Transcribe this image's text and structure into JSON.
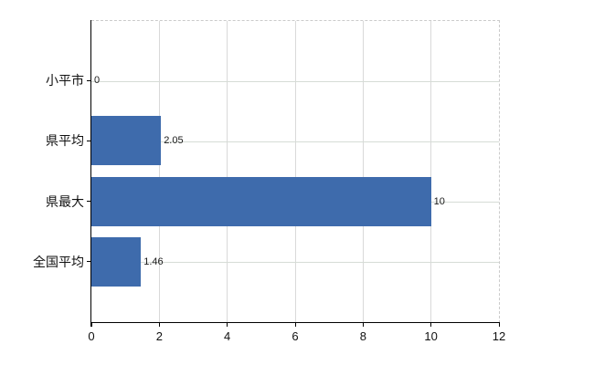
{
  "chart_data": {
    "type": "bar",
    "orientation": "horizontal",
    "title": "",
    "xlabel": "",
    "ylabel": "",
    "categories": [
      "小平市",
      "県平均",
      "県最大",
      "全国平均"
    ],
    "values": [
      0,
      2.05,
      10,
      1.46
    ],
    "value_labels": [
      "0",
      "2.05",
      "10",
      "1.46"
    ],
    "xlim": [
      0,
      12
    ],
    "x_ticks": [
      0,
      2,
      4,
      6,
      8,
      10,
      12
    ],
    "x_tick_labels": [
      "0",
      "2",
      "4",
      "6",
      "8",
      "10",
      "12"
    ],
    "grid": true,
    "legend": "none",
    "colors": {
      "bar": "#3e6bac",
      "vertical_gridline": "#d9d9d9",
      "horizontal_gridline": "#d6dcd6",
      "dashed_border": "#cbcbcb",
      "axis": "#000000",
      "text": "#111111"
    }
  }
}
